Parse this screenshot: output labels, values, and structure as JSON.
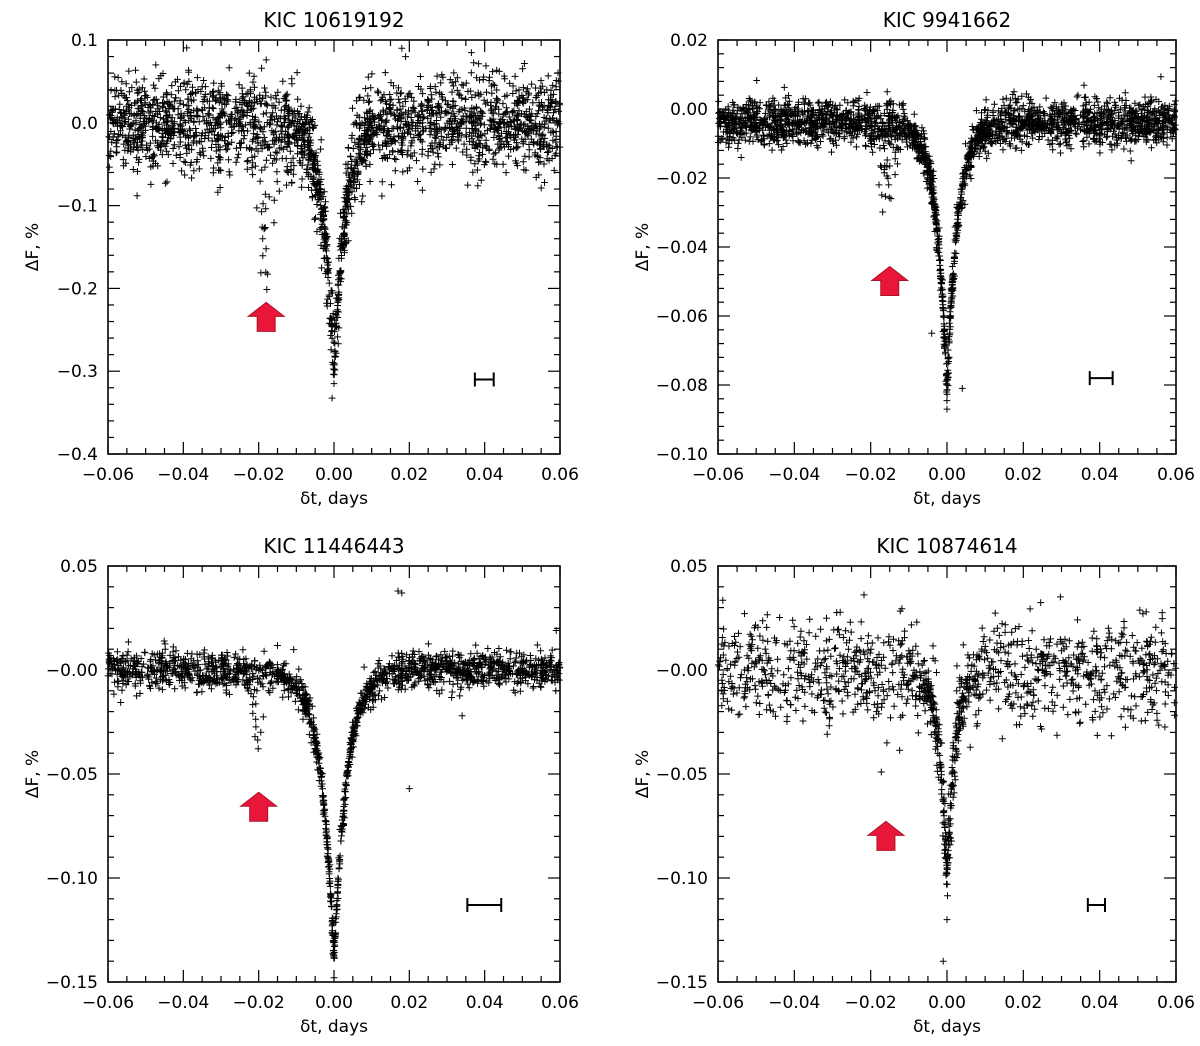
{
  "colors": {
    "arrow": "#e8173a",
    "points": "#000000",
    "background": "#ffffff"
  },
  "chart_data": [
    {
      "type": "scatter",
      "title": "KIC 10619192",
      "xlabel": "δt, days",
      "ylabel": "ΔF, %",
      "xlim": [
        -0.06,
        0.06
      ],
      "ylim": [
        -0.4,
        0.1
      ],
      "xticks": [
        -0.06,
        -0.04,
        -0.02,
        0.0,
        0.02,
        0.04,
        0.06
      ],
      "xtick_labels": [
        "−0.06",
        "−0.04",
        "−0.02",
        "0.00",
        "0.02",
        "0.04",
        "0.06"
      ],
      "yticks": [
        -0.4,
        -0.3,
        -0.2,
        -0.1,
        0.0,
        0.1
      ],
      "ytick_labels": [
        "−0.4",
        "−0.3",
        "−0.2",
        "−0.1",
        "0.0",
        "0.1"
      ],
      "marker": "+",
      "model": {
        "baseline": 0.0,
        "noise_sd": 0.028,
        "main_depth": 0.305,
        "main_center": 0.0,
        "main_width": 0.0048,
        "dip2_depth": 0.2,
        "dip2_center": -0.018,
        "dip2_width": 0.0017,
        "dip2_fraction": 0.3,
        "n_points": 2100
      },
      "outliers": [
        {
          "x": -0.018,
          "y": 0.076
        },
        {
          "x": 0.018,
          "y": 0.09
        },
        {
          "x": 0.019,
          "y": 0.08
        },
        {
          "x": 0.0,
          "y": -0.315
        }
      ],
      "arrow": {
        "x": -0.018,
        "y": -0.235
      },
      "timescale_bar": {
        "x_start": 0.0374,
        "x_end": 0.0424,
        "y": -0.31
      }
    },
    {
      "type": "scatter",
      "title": "KIC 9941662",
      "xlabel": "δt, days",
      "ylabel": "ΔF, %",
      "xlim": [
        -0.06,
        0.06
      ],
      "ylim": [
        -0.1,
        0.02
      ],
      "xticks": [
        -0.06,
        -0.04,
        -0.02,
        0.0,
        0.02,
        0.04,
        0.06
      ],
      "xtick_labels": [
        "−0.06",
        "−0.04",
        "−0.02",
        "0.00",
        "0.02",
        "0.04",
        "0.06"
      ],
      "yticks": [
        -0.1,
        -0.08,
        -0.06,
        -0.04,
        -0.02,
        0.0,
        0.02
      ],
      "ytick_labels": [
        "−0.10",
        "−0.08",
        "−0.06",
        "−0.04",
        "−0.02",
        "0.00",
        "0.02"
      ],
      "marker": "+",
      "model": {
        "baseline": -0.004,
        "noise_sd": 0.0032,
        "main_depth": 0.078,
        "main_center": 0.0,
        "main_width": 0.0045,
        "dip2_depth": 0.03,
        "dip2_center": -0.016,
        "dip2_width": 0.0018,
        "dip2_fraction": 0.3,
        "n_points": 2300
      },
      "outliers": [
        {
          "x": -0.004,
          "y": -0.065
        },
        {
          "x": 0.004,
          "y": -0.081
        },
        {
          "x": 0.0,
          "y": -0.087
        }
      ],
      "arrow": {
        "x": -0.015,
        "y": -0.05
      },
      "timescale_bar": {
        "x_start": 0.0374,
        "x_end": 0.0434,
        "y": -0.078
      }
    },
    {
      "type": "scatter",
      "title": "KIC 11446443",
      "xlabel": "δt, days",
      "ylabel": "ΔF, %",
      "xlim": [
        -0.06,
        0.06
      ],
      "ylim": [
        -0.15,
        0.05
      ],
      "xticks": [
        -0.06,
        -0.04,
        -0.02,
        0.0,
        0.02,
        0.04,
        0.06
      ],
      "xtick_labels": [
        "−0.06",
        "−0.04",
        "−0.02",
        "0.00",
        "0.02",
        "0.04",
        "0.06"
      ],
      "yticks": [
        -0.15,
        -0.1,
        -0.05,
        0.0,
        0.05
      ],
      "ytick_labels": [
        "−0.15",
        "−0.10",
        "−0.05",
        "−0.00",
        "0.05"
      ],
      "marker": "+",
      "model": {
        "baseline": 0.0,
        "noise_sd": 0.0045,
        "main_depth": 0.14,
        "main_center": 0.0,
        "main_width": 0.0055,
        "dip2_depth": 0.035,
        "dip2_center": -0.02,
        "dip2_width": 0.0015,
        "dip2_fraction": 0.3,
        "n_points": 1500
      },
      "outliers": [
        {
          "x": 0.017,
          "y": 0.038
        },
        {
          "x": 0.018,
          "y": 0.037
        },
        {
          "x": 0.02,
          "y": -0.057
        },
        {
          "x": 0.034,
          "y": -0.022
        },
        {
          "x": 0.059,
          "y": 0.019
        },
        {
          "x": 0.0,
          "y": -0.148
        }
      ],
      "arrow": {
        "x": -0.02,
        "y": -0.066
      },
      "timescale_bar": {
        "x_start": 0.0354,
        "x_end": 0.0444,
        "y": -0.113
      }
    },
    {
      "type": "scatter",
      "title": "KIC 10874614",
      "xlabel": "δt, days",
      "ylabel": "ΔF, %",
      "xlim": [
        -0.06,
        0.06
      ],
      "ylim": [
        -0.15,
        0.05
      ],
      "xticks": [
        -0.06,
        -0.04,
        -0.02,
        0.0,
        0.02,
        0.04,
        0.06
      ],
      "xtick_labels": [
        "−0.06",
        "−0.04",
        "−0.02",
        "0.00",
        "0.02",
        "0.04",
        "0.06"
      ],
      "yticks": [
        -0.15,
        -0.1,
        -0.05,
        0.0,
        0.05
      ],
      "ytick_labels": [
        "−0.15",
        "−0.10",
        "−0.05",
        "−0.00",
        "0.05"
      ],
      "marker": "+",
      "model": {
        "baseline": 0.0,
        "noise_sd": 0.012,
        "main_depth": 0.1,
        "main_center": 0.0,
        "main_width": 0.0035,
        "dip2_depth": 0.04,
        "dip2_center": -0.017,
        "dip2_width": 0.0018,
        "dip2_fraction": 0.3,
        "n_points": 1100
      },
      "outliers": [
        {
          "x": -0.001,
          "y": -0.14
        },
        {
          "x": 0.0,
          "y": -0.12
        }
      ],
      "arrow": {
        "x": -0.016,
        "y": -0.08
      },
      "timescale_bar": {
        "x_start": 0.0369,
        "x_end": 0.0414,
        "y": -0.113
      }
    }
  ]
}
